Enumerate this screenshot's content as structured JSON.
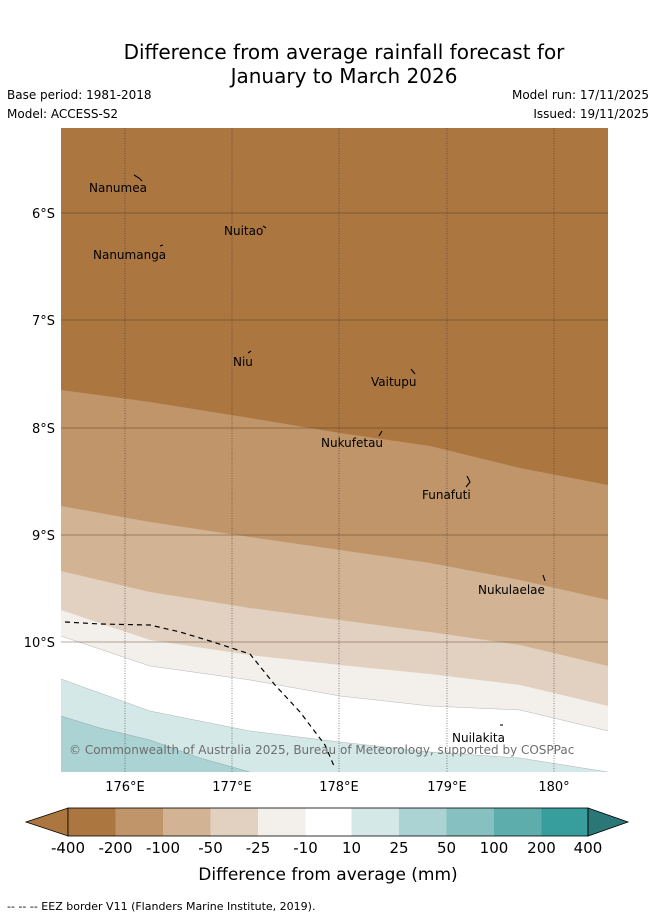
{
  "title": {
    "line1": "Difference from average rainfall forecast for",
    "line2": "January to March 2026"
  },
  "meta": {
    "base_period": "Base period: 1981-2018",
    "model": "Model: ACCESS-S2",
    "model_run": "Model run: 17/11/2025",
    "issued": "Issued: 19/11/2025"
  },
  "map": {
    "latitude_labels": [
      "6°S",
      "7°S",
      "8°S",
      "9°S",
      "10°S"
    ],
    "longitude_labels": [
      "176°E",
      "177°E",
      "178°E",
      "179°E",
      "180°"
    ],
    "islands": [
      {
        "name": "Nanumea"
      },
      {
        "name": "Nuitao"
      },
      {
        "name": "Nanumanga"
      },
      {
        "name": "Niu"
      },
      {
        "name": "Vaitupu"
      },
      {
        "name": "Nukufetau"
      },
      {
        "name": "Funafuti"
      },
      {
        "name": "Nukulaelae"
      },
      {
        "name": "Nuilakita"
      }
    ],
    "copyright": "© Commonwealth of Australia 2025, Bureau of Meteorology, supported by COSPPac",
    "colors": {
      "c_m400": "#ab7640",
      "c_m200": "#c0956a",
      "c_m100": "#d2b393",
      "c_m50": "#e2d1c0",
      "c_m25": "#f3efea",
      "c_m10": "#ffffff",
      "c_p10": "#d4e8e8",
      "c_p25": "#abd3d3",
      "c_p50": "#86c0c0",
      "c_p100": "#5eadad",
      "c_p200": "#389d9d",
      "c_p400": "#2b7778"
    }
  },
  "colorbar": {
    "tick_labels": [
      "-400",
      "-200",
      "-100",
      "-50",
      "-25",
      "-10",
      "10",
      "25",
      "50",
      "100",
      "200",
      "400"
    ],
    "title": "Difference from average (mm)"
  },
  "footer": {
    "text": "--  --  -- EEZ border V11 (Flanders Marine Institute, 2019)."
  }
}
